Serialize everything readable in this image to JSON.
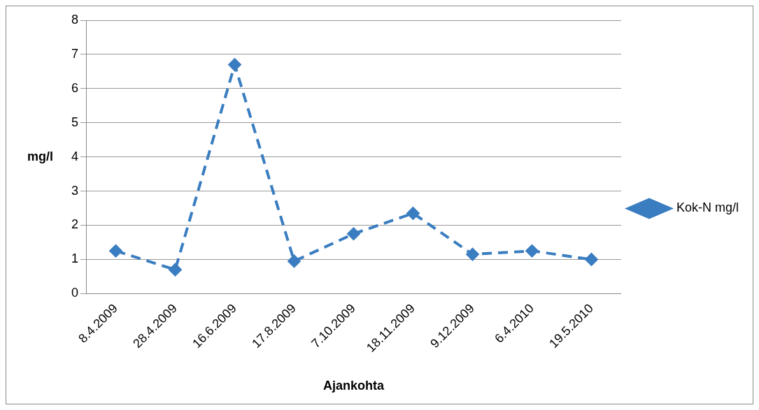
{
  "chart_data": {
    "type": "line",
    "xlabel": "Ajankohta",
    "ylabel": "mg/l",
    "categories": [
      "8.4.2009",
      "28.4.2009",
      "16.6.2009",
      "17.8.2009",
      "7.10.2009",
      "18.11.2009",
      "9.12.2009",
      "6.4.2010",
      "19.5.2010"
    ],
    "series": [
      {
        "name": "Kok-N mg/l",
        "color": "#3a7dc0",
        "values": [
          1.25,
          0.7,
          6.7,
          0.95,
          1.75,
          2.35,
          1.15,
          1.25,
          1.0
        ]
      }
    ],
    "ylim": [
      0,
      8
    ],
    "yticks": [
      0,
      1,
      2,
      3,
      4,
      5,
      6,
      7,
      8
    ],
    "grid": "y",
    "legend": "right",
    "marker": "diamond",
    "line_style": "dashed"
  }
}
